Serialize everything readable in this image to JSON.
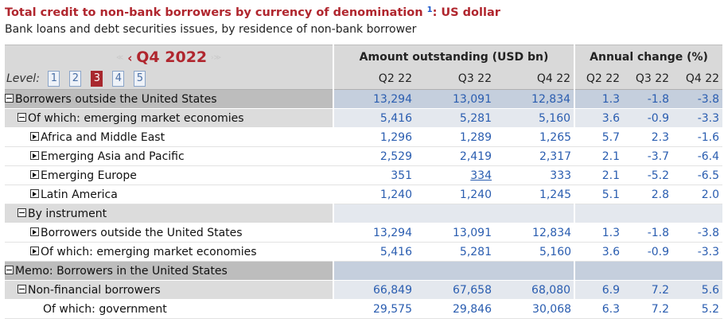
{
  "title": "Total credit to non-bank borrowers by currency of denomination",
  "title_footnote": "1",
  "title_suffix": ": US dollar",
  "subtitle": "Bank loans and debt securities issues, by residence of non-bank borrower",
  "period": "Q4 2022",
  "level_label": "Level:",
  "levels": [
    "1",
    "2",
    "3",
    "4",
    "5"
  ],
  "active_level": "3",
  "headers": {
    "amount": "Amount outstanding (USD bn)",
    "change": "Annual change (%)",
    "cols": [
      "Q2 22",
      "Q3 22",
      "Q4 22",
      "Q2 22",
      "Q3 22",
      "Q4 22"
    ]
  },
  "rows": [
    {
      "label": "Borrowers outside the United States",
      "values": [
        "13,294",
        "13,091",
        "12,834",
        "1.3",
        "-1.8",
        "-3.8"
      ]
    },
    {
      "label": "Of which: emerging market economies",
      "values": [
        "5,416",
        "5,281",
        "5,160",
        "3.6",
        "-0.9",
        "-3.3"
      ]
    },
    {
      "label": "Africa and Middle East",
      "values": [
        "1,296",
        "1,289",
        "1,265",
        "5.7",
        "2.3",
        "-1.6"
      ]
    },
    {
      "label": "Emerging Asia and Pacific",
      "values": [
        "2,529",
        "2,419",
        "2,317",
        "2.1",
        "-3.7",
        "-6.4"
      ]
    },
    {
      "label": "Emerging Europe",
      "values": [
        "351",
        "334",
        "333",
        "2.1",
        "-5.2",
        "-6.5"
      ]
    },
    {
      "label": "Latin America",
      "values": [
        "1,240",
        "1,240",
        "1,245",
        "5.1",
        "2.8",
        "2.0"
      ]
    },
    {
      "label": "By instrument",
      "values": [
        "",
        "",
        "",
        "",
        "",
        ""
      ]
    },
    {
      "label": "Borrowers outside the United States",
      "values": [
        "13,294",
        "13,091",
        "12,834",
        "1.3",
        "-1.8",
        "-3.8"
      ]
    },
    {
      "label": "Of which: emerging market economies",
      "values": [
        "5,416",
        "5,281",
        "5,160",
        "3.6",
        "-0.9",
        "-3.3"
      ]
    },
    {
      "label": "Memo: Borrowers in the United States",
      "values": [
        "",
        "",
        "",
        "",
        "",
        ""
      ]
    },
    {
      "label": "Non-financial borrowers",
      "values": [
        "66,849",
        "67,658",
        "68,080",
        "6.9",
        "7.2",
        "5.6"
      ]
    },
    {
      "label": "Of which: government",
      "values": [
        "29,575",
        "29,846",
        "30,068",
        "6.3",
        "7.2",
        "5.2"
      ]
    }
  ]
}
